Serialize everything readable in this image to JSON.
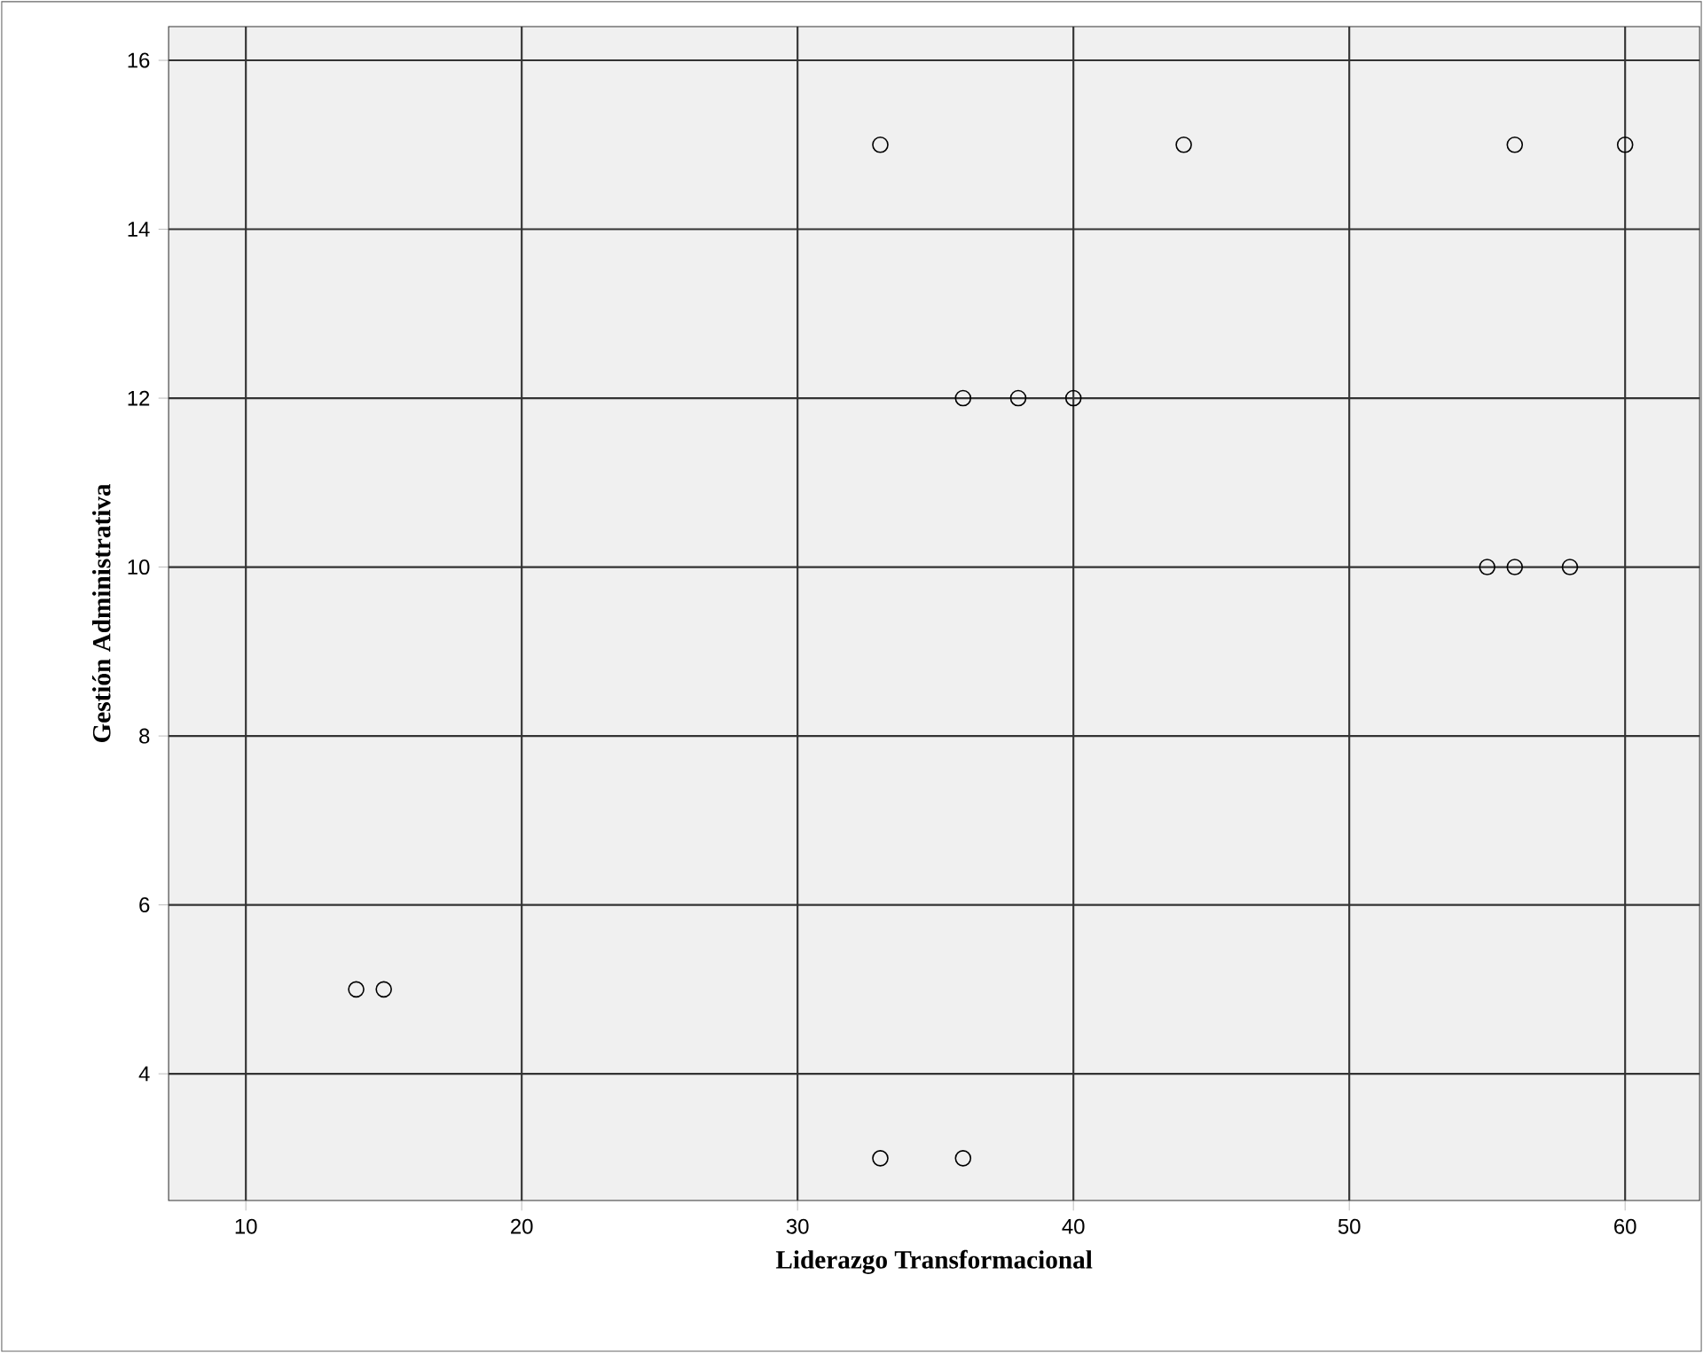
{
  "chart_data": {
    "type": "scatter",
    "xlabel": "Liderazgo Transformacional",
    "ylabel": "Gestión Administrativa",
    "x": [
      33,
      44,
      56,
      60,
      36,
      38,
      40,
      55,
      56,
      58,
      14,
      15,
      33,
      36
    ],
    "values": [
      15,
      15,
      15,
      15,
      12,
      12,
      12,
      10,
      10,
      10,
      5,
      5,
      3,
      3
    ],
    "color": "#000000",
    "marker": "circle",
    "grid": true,
    "xlim": [
      7.2,
      62.7
    ],
    "ylim": [
      2.5,
      16.4
    ],
    "xticks": [
      10,
      20,
      30,
      40,
      50,
      60
    ],
    "yticks": [
      4,
      6,
      8,
      10,
      12,
      14,
      16
    ]
  }
}
